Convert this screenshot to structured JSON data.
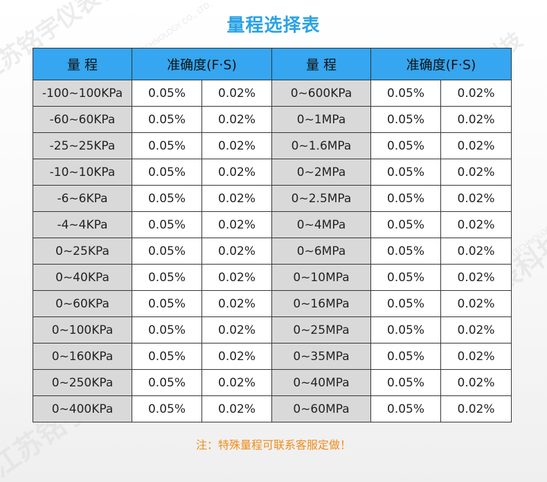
{
  "title": "量程选择表",
  "headers": {
    "range": "量 程",
    "accuracy": "准确度(F·S)"
  },
  "rows": [
    {
      "left_range": "-100~100KPa",
      "left_acc1": "0.05%",
      "left_acc2": "0.02%",
      "right_range": "0~600KPa",
      "right_acc1": "0.05%",
      "right_acc2": "0.02%"
    },
    {
      "left_range": "-60~60KPa",
      "left_acc1": "0.05%",
      "left_acc2": "0.02%",
      "right_range": "0~1MPa",
      "right_acc1": "0.05%",
      "right_acc2": "0.02%"
    },
    {
      "left_range": "-25~25KPa",
      "left_acc1": "0.05%",
      "left_acc2": "0.02%",
      "right_range": "0~1.6MPa",
      "right_acc1": "0.05%",
      "right_acc2": "0.02%"
    },
    {
      "left_range": "-10~10KPa",
      "left_acc1": "0.05%",
      "left_acc2": "0.02%",
      "right_range": "0~2MPa",
      "right_acc1": "0.05%",
      "right_acc2": "0.02%"
    },
    {
      "left_range": "-6~6KPa",
      "left_acc1": "0.05%",
      "left_acc2": "0.02%",
      "right_range": "0~2.5MPa",
      "right_acc1": "0.05%",
      "right_acc2": "0.02%"
    },
    {
      "left_range": "-4~4KPa",
      "left_acc1": "0.05%",
      "left_acc2": "0.02%",
      "right_range": "0~4MPa",
      "right_acc1": "0.05%",
      "right_acc2": "0.02%"
    },
    {
      "left_range": "0~25KPa",
      "left_acc1": "0.05%",
      "left_acc2": "0.02%",
      "right_range": "0~6MPa",
      "right_acc1": "0.05%",
      "right_acc2": "0.02%"
    },
    {
      "left_range": "0~40KPa",
      "left_acc1": "0.05%",
      "left_acc2": "0.02%",
      "right_range": "0~10MPa",
      "right_acc1": "0.05%",
      "right_acc2": "0.02%"
    },
    {
      "left_range": "0~60KPa",
      "left_acc1": "0.05%",
      "left_acc2": "0.02%",
      "right_range": "0~16MPa",
      "right_acc1": "0.05%",
      "right_acc2": "0.02%"
    },
    {
      "left_range": "0~100KPa",
      "left_acc1": "0.05%",
      "left_acc2": "0.02%",
      "right_range": "0~25MPa",
      "right_acc1": "0.05%",
      "right_acc2": "0.02%"
    },
    {
      "left_range": "0~160KPa",
      "left_acc1": "0.05%",
      "left_acc2": "0.02%",
      "right_range": "0~35MPa",
      "right_acc1": "0.05%",
      "right_acc2": "0.02%"
    },
    {
      "left_range": "0~250KPa",
      "left_acc1": "0.05%",
      "left_acc2": "0.02%",
      "right_range": "0~40MPa",
      "right_acc1": "0.05%",
      "right_acc2": "0.02%"
    },
    {
      "left_range": "0~400KPa",
      "left_acc1": "0.05%",
      "left_acc2": "0.02%",
      "right_range": "0~60MPa",
      "right_acc1": "0.05%",
      "right_acc2": "0.02%"
    }
  ],
  "note": "注：特殊量程可联系客服定做！",
  "watermark": {
    "cn": "江苏铭宇仪表科技",
    "en": "JIANGSU MINGYU INSTRUMENT TECHNOLOGY CO., LTD."
  },
  "colors": {
    "title": "#2aa2e6",
    "header_bg": "#35a6ef",
    "range_cell_bg": "#d9d9d9",
    "note": "#f08c1a"
  }
}
